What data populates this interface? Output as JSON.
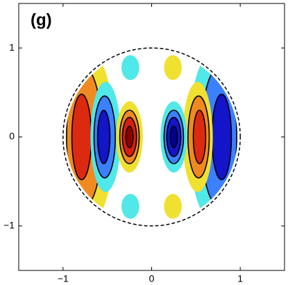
{
  "chart_data": {
    "type": "contour",
    "title": "(g)",
    "xlim": [
      -1.5,
      1.5
    ],
    "ylim": [
      -1.5,
      1.5
    ],
    "xticks": [
      {
        "value": -1,
        "label": "−1"
      },
      0,
      1
    ],
    "yticks": [
      {
        "value": -1,
        "label": "−1"
      },
      0,
      1
    ]
  }
}
